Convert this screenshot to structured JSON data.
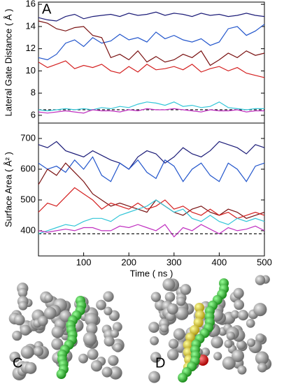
{
  "chart_data": [
    {
      "type": "line",
      "panel_label": "A",
      "ylabel": "Lateral Gate Distance ( Å )",
      "x": [
        0,
        20,
        40,
        60,
        80,
        100,
        120,
        140,
        160,
        180,
        200,
        220,
        240,
        260,
        280,
        300,
        320,
        340,
        360,
        380,
        400,
        420,
        440,
        460,
        480,
        500
      ],
      "xlim": [
        0,
        500
      ],
      "ylim": [
        5.3,
        16.2
      ],
      "yticks": [
        6,
        8,
        10,
        12,
        14,
        16
      ],
      "reference_line": 6.5,
      "series": [
        {
          "color": "#1c1c78",
          "values": [
            14.8,
            14.6,
            14.5,
            14.9,
            15.1,
            14.7,
            14.9,
            15.0,
            15.1,
            14.9,
            15.2,
            15.0,
            15.1,
            15.3,
            15.0,
            15.2,
            15.1,
            14.9,
            15.2,
            15.0,
            15.1,
            14.9,
            15.0,
            15.2,
            15.0,
            14.9
          ]
        },
        {
          "color": "#2356cc",
          "values": [
            11.2,
            11.0,
            11.5,
            12.5,
            12.8,
            12.2,
            13.0,
            12.5,
            12.7,
            13.3,
            12.8,
            13.0,
            12.6,
            13.5,
            12.9,
            13.2,
            12.8,
            12.6,
            12.9,
            12.3,
            12.6,
            13.8,
            14.0,
            13.2,
            13.6,
            14.2
          ]
        },
        {
          "color": "#7a1212",
          "values": [
            14.5,
            14.3,
            13.8,
            13.6,
            13.9,
            14.0,
            13.2,
            13.0,
            11.2,
            11.5,
            11.0,
            11.8,
            10.8,
            11.3,
            10.8,
            11.0,
            11.5,
            11.2,
            11.8,
            10.5,
            11.0,
            11.6,
            11.2,
            11.8,
            11.4,
            11.6
          ]
        },
        {
          "color": "#d42020",
          "values": [
            10.8,
            10.3,
            10.6,
            10.9,
            10.2,
            10.5,
            10.3,
            10.6,
            10.0,
            9.8,
            10.4,
            9.9,
            10.6,
            10.1,
            10.2,
            10.4,
            10.1,
            10.6,
            9.9,
            10.2,
            10.4,
            10.0,
            10.3,
            9.8,
            9.6,
            9.4
          ]
        },
        {
          "color": "#33c6d8",
          "values": [
            6.5,
            6.4,
            6.5,
            6.6,
            6.5,
            6.6,
            6.5,
            6.7,
            6.6,
            6.8,
            6.7,
            7.0,
            7.2,
            7.1,
            6.9,
            7.2,
            6.8,
            6.9,
            6.7,
            6.8,
            7.2,
            6.7,
            6.6,
            6.5,
            6.6,
            6.6
          ]
        },
        {
          "color": "#c030c0",
          "values": [
            6.3,
            6.2,
            6.3,
            6.4,
            6.3,
            6.2,
            6.5,
            6.4,
            6.4,
            6.3,
            6.5,
            6.4,
            6.6,
            6.5,
            6.5,
            6.6,
            6.5,
            6.4,
            6.3,
            6.5,
            6.4,
            6.4,
            6.5,
            6.3,
            6.4,
            6.4
          ]
        }
      ]
    },
    {
      "type": "line",
      "ylabel": "Surface Area ( Å² )",
      "xlabel": "Time ( ns )",
      "x": [
        0,
        20,
        40,
        60,
        80,
        100,
        120,
        140,
        160,
        180,
        200,
        220,
        240,
        260,
        280,
        300,
        320,
        340,
        360,
        380,
        400,
        420,
        440,
        460,
        480,
        500
      ],
      "xlim": [
        0,
        500
      ],
      "xticks": [
        100,
        200,
        300,
        400,
        500
      ],
      "ylim": [
        318,
        750
      ],
      "yticks": [
        400,
        500,
        600,
        700
      ],
      "reference_line": 390,
      "series": [
        {
          "color": "#1c1c78",
          "values": [
            680,
            670,
            690,
            660,
            650,
            640,
            660,
            645,
            630,
            620,
            600,
            640,
            660,
            650,
            620,
            640,
            670,
            650,
            640,
            660,
            690,
            680,
            670,
            650,
            680,
            670
          ]
        },
        {
          "color": "#2356cc",
          "values": [
            620,
            600,
            610,
            590,
            630,
            600,
            640,
            580,
            560,
            620,
            600,
            630,
            590,
            570,
            630,
            610,
            560,
            600,
            620,
            580,
            560,
            620,
            600,
            560,
            610,
            620
          ]
        },
        {
          "color": "#7a1212",
          "values": [
            550,
            600,
            580,
            620,
            590,
            560,
            520,
            500,
            480,
            490,
            480,
            470,
            460,
            500,
            480,
            460,
            450,
            470,
            480,
            460,
            450,
            470,
            460,
            440,
            450,
            460
          ]
        },
        {
          "color": "#d42020",
          "values": [
            460,
            490,
            480,
            510,
            540,
            520,
            500,
            470,
            490,
            480,
            470,
            490,
            470,
            480,
            500,
            470,
            480,
            460,
            450,
            470,
            450,
            460,
            440,
            450,
            460,
            450
          ]
        },
        {
          "color": "#33c6d8",
          "values": [
            390,
            400,
            410,
            420,
            415,
            430,
            440,
            440,
            430,
            450,
            460,
            470,
            480,
            500,
            480,
            460,
            470,
            440,
            430,
            450,
            430,
            420,
            440,
            430,
            440,
            430
          ]
        },
        {
          "color": "#c030c0",
          "values": [
            400,
            395,
            400,
            405,
            400,
            410,
            410,
            400,
            400,
            415,
            410,
            420,
            410,
            400,
            420,
            380,
            410,
            400,
            420,
            405,
            390,
            410,
            400,
            405,
            415,
            400
          ]
        }
      ]
    }
  ],
  "images": [
    {
      "label": "C"
    },
    {
      "label": "D"
    }
  ]
}
